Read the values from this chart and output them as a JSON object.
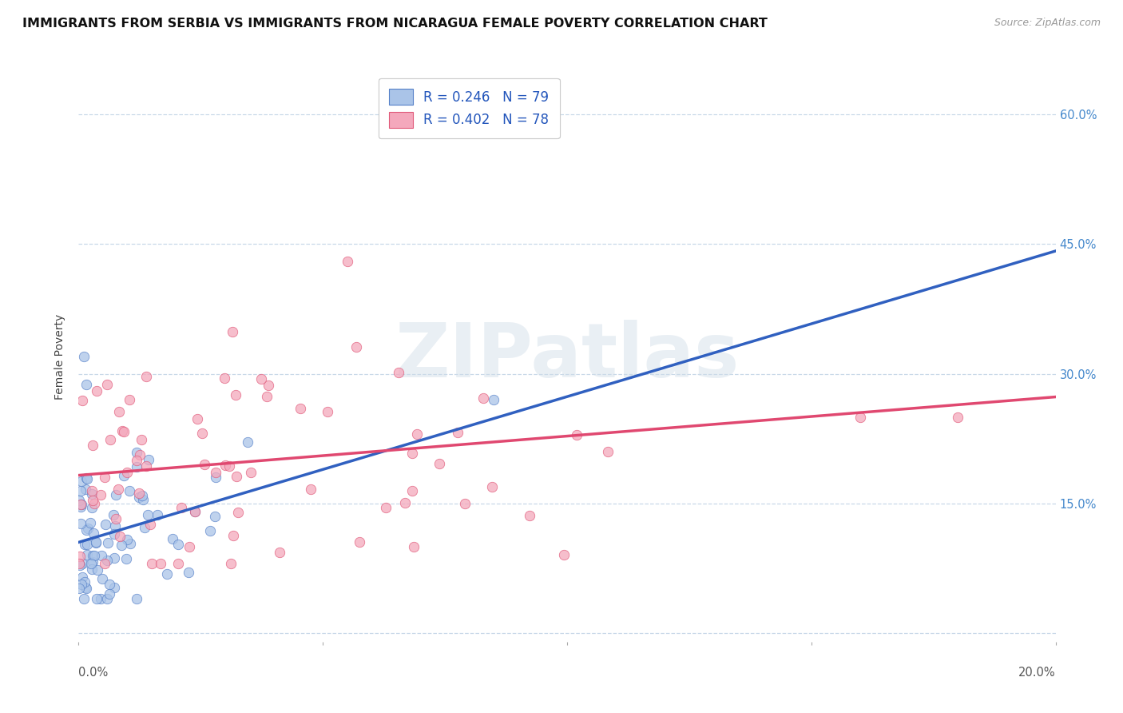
{
  "title": "IMMIGRANTS FROM SERBIA VS IMMIGRANTS FROM NICARAGUA FEMALE POVERTY CORRELATION CHART",
  "source": "Source: ZipAtlas.com",
  "ylabel": "Female Poverty",
  "legend_serbia_R": "R = 0.246",
  "legend_serbia_N": "N = 79",
  "legend_nicaragua_R": "R = 0.402",
  "legend_nicaragua_N": "N = 78",
  "serbia_scatter_color": "#aac4e8",
  "nicaragua_scatter_color": "#f4a8bc",
  "serbia_edge_color": "#5580c8",
  "nicaragua_edge_color": "#e05878",
  "serbia_line_color": "#3060c0",
  "nicaragua_line_color": "#e04870",
  "watermark": "ZIPatlas",
  "xlim": [
    0.0,
    0.2
  ],
  "ylim": [
    -0.01,
    0.65
  ],
  "yticks": [
    0.0,
    0.15,
    0.3,
    0.45,
    0.6
  ],
  "ytick_labels_right": [
    "",
    "15.0%",
    "30.0%",
    "45.0%",
    "60.0%"
  ],
  "xtick_left_label": "0.0%",
  "xtick_right_label": "20.0%",
  "background_color": "#ffffff",
  "grid_color": "#c8d8e8",
  "title_fontsize": 11.5,
  "axis_fontsize": 10.5,
  "legend_fontsize": 12
}
